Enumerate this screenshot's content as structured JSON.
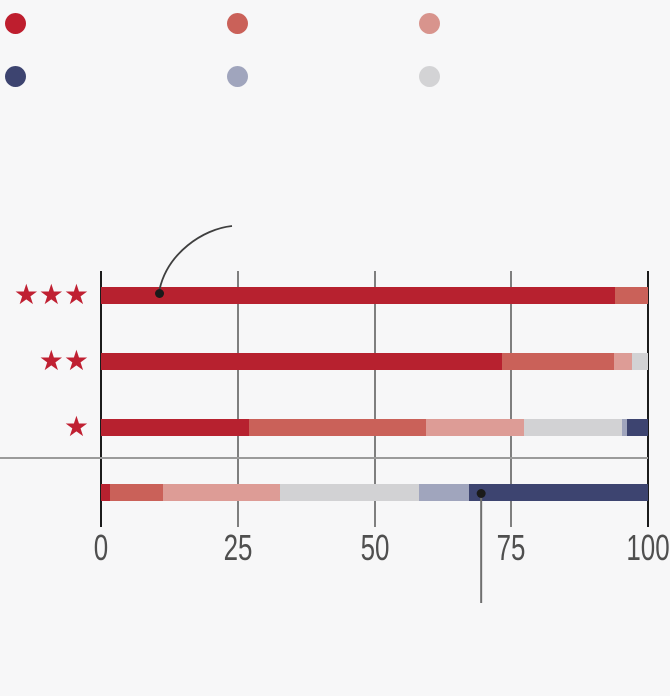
{
  "canvas": {
    "bg": "#f7f7f8"
  },
  "legend": {
    "rows": [
      {
        "dots": [
          {
            "name": "dark-red-dot",
            "color": "#be1e2e"
          },
          {
            "name": "salmon-dot",
            "color": "#ca6159"
          },
          {
            "name": "pink-dot",
            "color": "#d8948d"
          }
        ]
      },
      {
        "dots": [
          {
            "name": "navy-dot",
            "color": "#3d4470"
          },
          {
            "name": "blue-gray-dot",
            "color": "#a0a5bd"
          },
          {
            "name": "light-gray-dot",
            "color": "#d3d3d5"
          }
        ]
      }
    ]
  },
  "row_labels": {
    "char": "★",
    "color": "#c02032",
    "rows": [
      {
        "stars": 3
      },
      {
        "stars": 2
      },
      {
        "stars": 1
      },
      {
        "stars": 0
      }
    ]
  },
  "axis": {
    "tick_labels": [
      "0",
      "25",
      "50",
      "75",
      "100"
    ],
    "tick_values": [
      0,
      25,
      50,
      75,
      100
    ],
    "label_color": "#4f4f4f"
  },
  "chart_data": {
    "type": "bar",
    "stacked": true,
    "orientation": "horizontal",
    "title": "",
    "xlabel": "",
    "ylabel": "",
    "xlim": [
      0,
      100
    ],
    "grid": true,
    "categories": [
      "3-star",
      "2-star",
      "1-star",
      "no-star"
    ],
    "series": [
      {
        "name": "dark-red",
        "color": "#b7212f",
        "values": [
          94,
          73.3,
          27,
          1.6
        ]
      },
      {
        "name": "salmon",
        "color": "#ca6159",
        "values": [
          6,
          20.5,
          32.4,
          9.8
        ]
      },
      {
        "name": "pink",
        "color": "#dd9c96",
        "values": [
          0,
          3.3,
          17.9,
          21.3
        ]
      },
      {
        "name": "light-gray",
        "color": "#d2d2d4",
        "values": [
          0,
          2.9,
          18,
          25.4
        ]
      },
      {
        "name": "blue-gray",
        "color": "#a0a5bd",
        "values": [
          0,
          0,
          0.8,
          9.1
        ]
      },
      {
        "name": "navy",
        "color": "#3d4470",
        "values": [
          0,
          0,
          3.9,
          32.8
        ]
      }
    ],
    "annotations": [
      {
        "target_category": "3-star",
        "x": 10.7,
        "marker": "dot",
        "pointer": "curve-from-above"
      },
      {
        "target_category": "no-star",
        "x": 69.5,
        "marker": "dot",
        "pointer": "line-below"
      }
    ]
  }
}
